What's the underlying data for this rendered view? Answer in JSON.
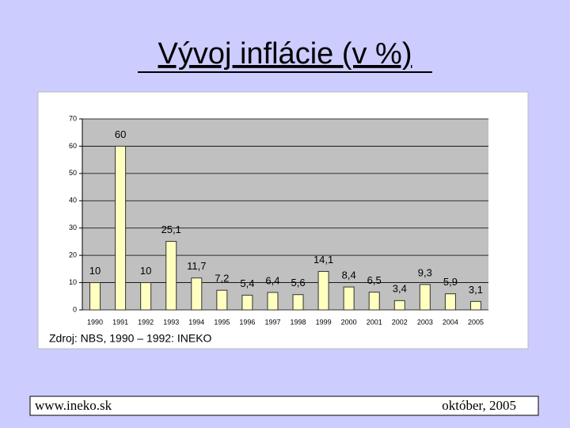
{
  "chart_data": {
    "type": "bar",
    "title": "Vývoj inflácie (v %)",
    "categories": [
      "1990",
      "1991",
      "1992",
      "1993",
      "1994",
      "1995",
      "1996",
      "1997",
      "1998",
      "1999",
      "2000",
      "2001",
      "2002",
      "2003",
      "2004",
      "2005"
    ],
    "values": [
      10,
      60,
      10,
      25.1,
      11.7,
      7.2,
      5.4,
      6.4,
      5.6,
      14.1,
      8.4,
      6.5,
      3.4,
      9.3,
      5.9,
      3.1
    ],
    "value_labels": [
      "10",
      "60",
      "10",
      "25,1",
      "11,7",
      "7,2",
      "5,4",
      "6,4",
      "5,6",
      "14,1",
      "8,4",
      "6,5",
      "3,4",
      "9,3",
      "5,9",
      "3,1"
    ],
    "color": "#ffffc0",
    "ylim": [
      0,
      70
    ],
    "yticks": [
      0,
      10,
      20,
      30,
      40,
      50,
      60,
      70
    ],
    "grid": true,
    "source": "Zdroj: NBS, 1990 – 1992: INEKO"
  },
  "footer": {
    "left": "www.ineko.sk",
    "right": "október, 2005"
  }
}
